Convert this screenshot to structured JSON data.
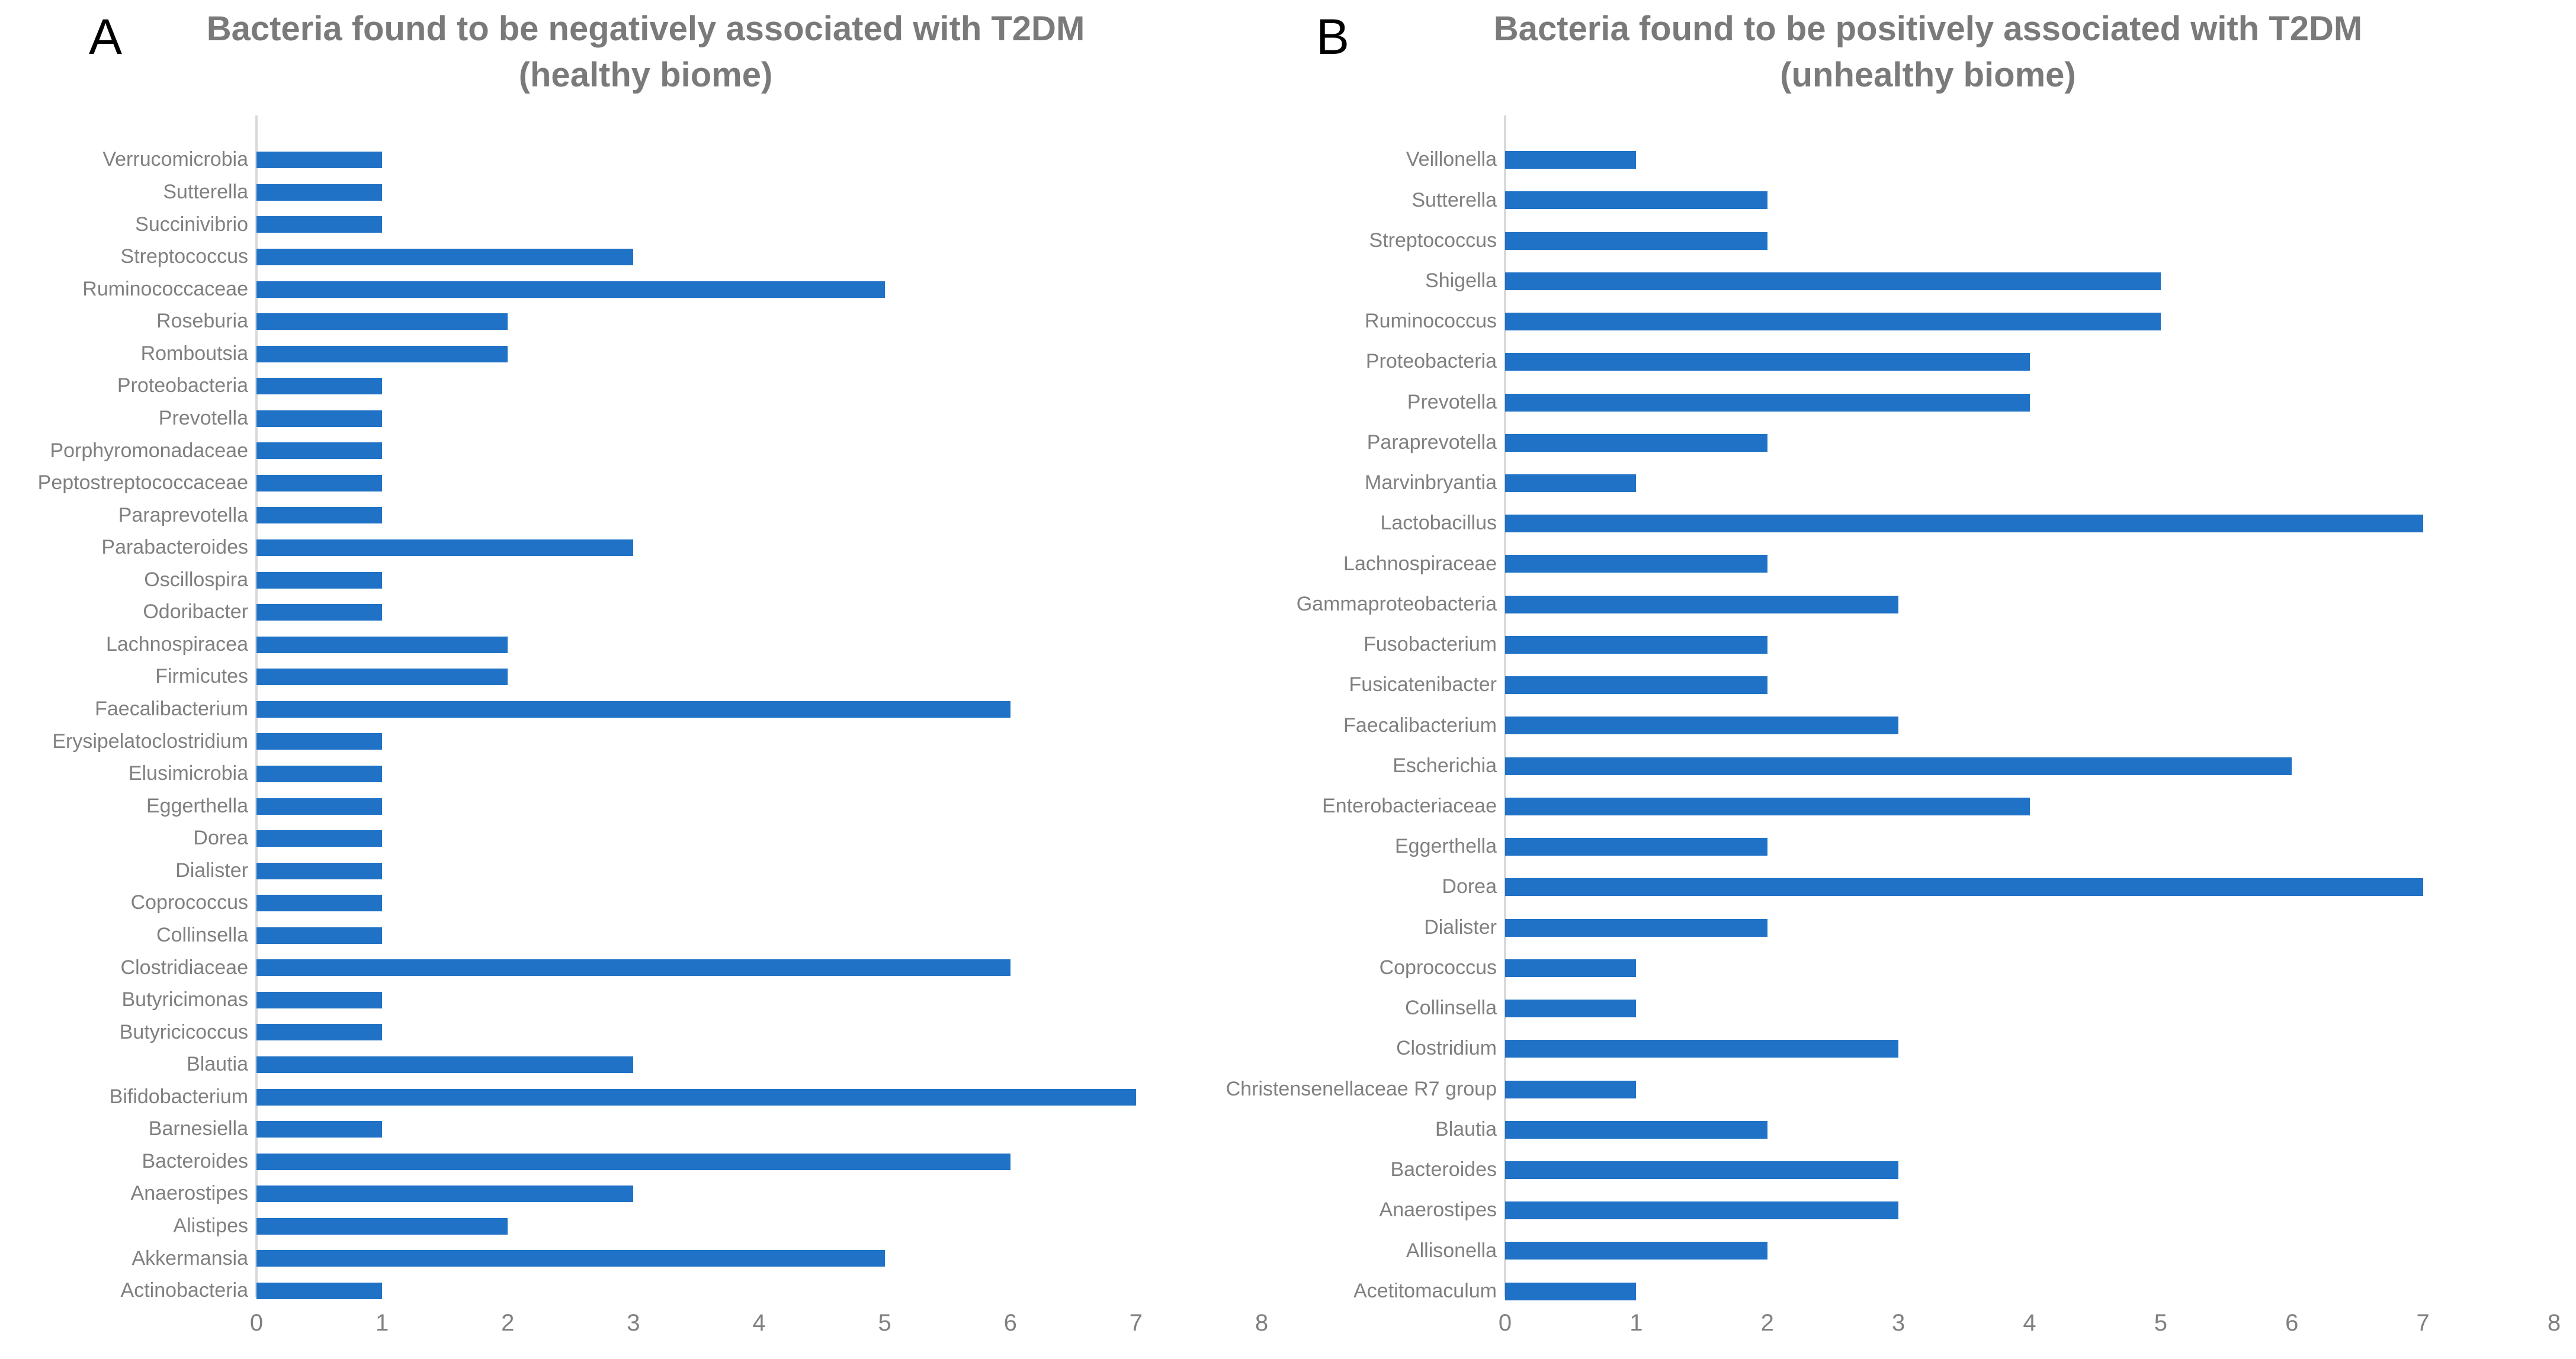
{
  "colors": {
    "bar": "#1F72C6",
    "axis_line": "#D9D9D9",
    "category_label": "#808080",
    "tick_label": "#808080",
    "title": "#7A7A7A",
    "panel_letter": "#000000",
    "background": "#FFFFFF"
  },
  "chart_data": [
    {
      "panel": "A",
      "type": "bar",
      "orientation": "horizontal",
      "title": "Bacteria found to be negatively  associated with T2DM (healthy biome)",
      "xlim": [
        0,
        8
      ],
      "xticks": [
        0,
        1,
        2,
        3,
        4,
        5,
        6,
        7,
        8
      ],
      "grid": false,
      "legend": false,
      "bar_color": "#1F72C6",
      "categories": [
        "Verrucomicrobia",
        "Sutterella",
        "Succinivibrio",
        "Streptococcus",
        "Ruminococcaceae",
        "Roseburia",
        "Romboutsia",
        "Proteobacteria",
        "Prevotella",
        "Porphyromonadaceae",
        "Peptostreptococcaceae",
        "Paraprevotella",
        "Parabacteroides",
        "Oscillospira",
        "Odoribacter",
        "Lachnospiracea",
        "Firmicutes",
        "Faecalibacterium",
        "Erysipelatoclostridium",
        "Elusimicrobia",
        "Eggerthella",
        "Dorea",
        "Dialister",
        "Coprococcus",
        "Collinsella",
        "Clostridiaceae",
        "Butyricimonas",
        "Butyricicoccus",
        "Blautia",
        "Bifidobacterium",
        "Barnesiella",
        "Bacteroides",
        "Anaerostipes",
        "Alistipes",
        "Akkermansia",
        "Actinobacteria"
      ],
      "values": [
        1,
        1,
        1,
        3,
        5,
        2,
        2,
        1,
        1,
        1,
        1,
        1,
        3,
        1,
        1,
        2,
        2,
        6,
        1,
        1,
        1,
        1,
        1,
        1,
        1,
        6,
        1,
        1,
        3,
        7,
        1,
        6,
        3,
        2,
        5,
        1
      ]
    },
    {
      "panel": "B",
      "type": "bar",
      "orientation": "horizontal",
      "title": "Bacteria found to be positively associated with T2DM (unhealthy biome)",
      "xlim": [
        0,
        8
      ],
      "xticks": [
        0,
        1,
        2,
        3,
        4,
        5,
        6,
        7,
        8
      ],
      "grid": false,
      "legend": false,
      "bar_color": "#1F72C6",
      "categories": [
        "Veillonella",
        "Sutterella",
        "Streptococcus",
        "Shigella",
        "Ruminococcus",
        "Proteobacteria",
        "Prevotella",
        "Paraprevotella",
        "Marvinbryantia",
        "Lactobacillus",
        "Lachnospiraceae",
        "Gammaproteobacteria",
        "Fusobacterium",
        "Fusicatenibacter",
        "Faecalibacterium",
        "Escherichia",
        "Enterobacteriaceae",
        "Eggerthella",
        "Dorea",
        "Dialister",
        "Coprococcus",
        "Collinsella",
        "Clostridium",
        "Christensenellaceae R7 group",
        "Blautia",
        "Bacteroides",
        "Anaerostipes",
        "Allisonella",
        "Acetitomaculum"
      ],
      "values": [
        1,
        2,
        2,
        5,
        5,
        4,
        4,
        2,
        1,
        7,
        2,
        3,
        2,
        2,
        3,
        6,
        4,
        2,
        7,
        2,
        1,
        1,
        3,
        1,
        2,
        3,
        3,
        2,
        1
      ]
    }
  ]
}
